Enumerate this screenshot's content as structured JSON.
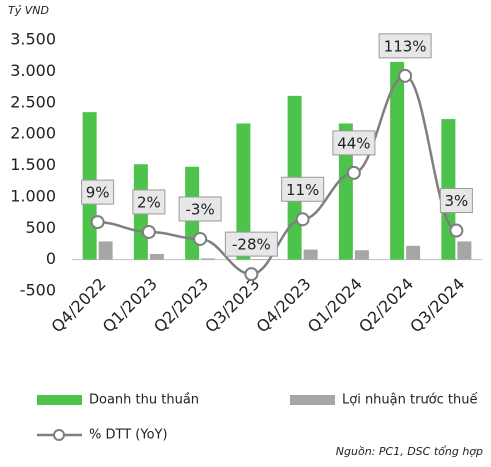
{
  "chart_data": {
    "type": "bar",
    "unit_label": "Tỷ VND",
    "source": "Nguồn: PC1, DSC tổng hợp",
    "categories": [
      "Q4/2022",
      "Q1/2023",
      "Q2/2023",
      "Q3/2023",
      "Q4/2023",
      "Q1/2024",
      "Q2/2024",
      "Q3/2024"
    ],
    "series": [
      {
        "name": "Doanh thu thuần",
        "color": "#4ec34c",
        "values": [
          2350,
          1520,
          1480,
          2170,
          2610,
          2170,
          3150,
          2240
        ]
      },
      {
        "name": "Lợi nhuận trước thuế",
        "color": "#a6a6a6",
        "values": [
          290,
          90,
          20,
          10,
          160,
          150,
          220,
          290
        ]
      },
      {
        "name": "% DTT (YoY)",
        "type": "line",
        "axis": "y2",
        "color": "#7f7f7f",
        "values": [
          9,
          2,
          -3,
          -28,
          11,
          44,
          113,
          3
        ],
        "value_labels": [
          "9%",
          "2%",
          "-3%",
          "-28%",
          "11%",
          "44%",
          "113%",
          "3%"
        ]
      }
    ],
    "ylim": [
      -500,
      3500
    ],
    "yticks": [
      {
        "value": 3500,
        "label": "3.500"
      },
      {
        "value": 3000,
        "label": "3.000"
      },
      {
        "value": 2500,
        "label": "2.500"
      },
      {
        "value": 2000,
        "label": "2.000"
      },
      {
        "value": 1500,
        "label": "1.500"
      },
      {
        "value": 1000,
        "label": "1.000"
      },
      500,
      0,
      -500
    ],
    "y2lim": [
      -40,
      138.5
    ]
  }
}
